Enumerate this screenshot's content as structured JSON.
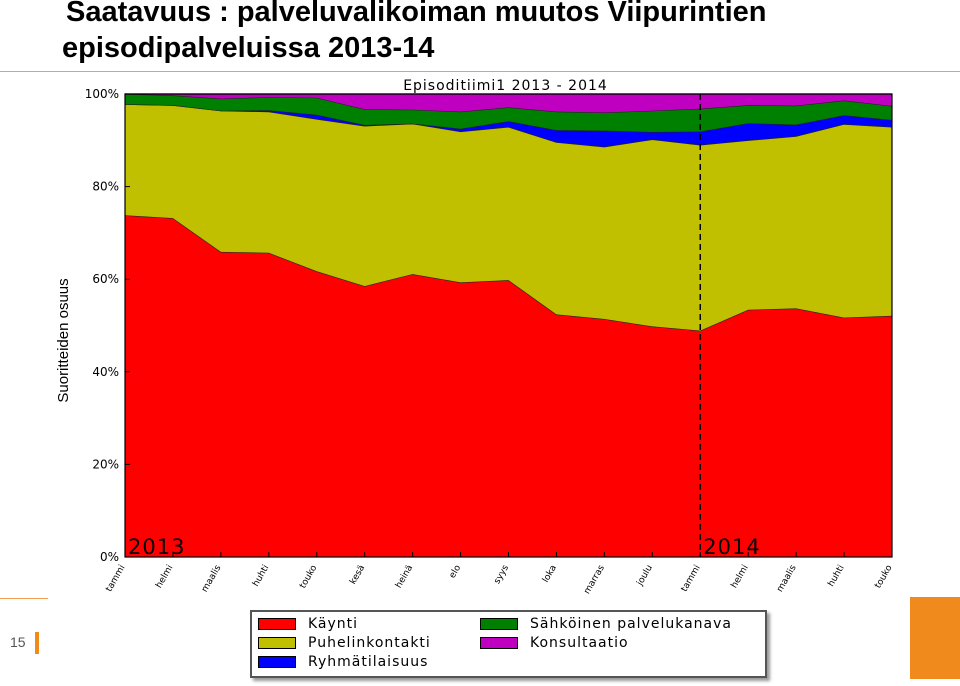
{
  "slide": {
    "title_line1": "Saatavuus : palveluvalikoiman muutos Viipurintien",
    "title_line2": "episodipalveluissa 2013-14",
    "page_number": "15",
    "accent_color": "#f08a1c"
  },
  "chart_data": {
    "type": "area",
    "stacked": true,
    "normalized": true,
    "title": "Episoditiimi1 2013 - 2014",
    "ylabel": "Suoritteiden osuus",
    "xlabel": "",
    "ylim": [
      0,
      100
    ],
    "y_ticks": [
      "0%",
      "20%",
      "40%",
      "60%",
      "80%",
      "100%"
    ],
    "x": [
      "tammi",
      "helmi",
      "maalis",
      "huhti",
      "touko",
      "kesä",
      "heinä",
      "elo",
      "syys",
      "loka",
      "marras",
      "joulu",
      "tammi",
      "helmi",
      "maalis",
      "huhti",
      "touko"
    ],
    "year_labels": [
      {
        "label": "2013",
        "start_index": 0
      },
      {
        "label": "2014",
        "start_index": 12
      }
    ],
    "year_divider_at_index": 12,
    "series": [
      {
        "name": "Käynti",
        "color": "#ff0000",
        "values": [
          73.8,
          73.2,
          65.9,
          65.7,
          61.7,
          58.5,
          61.1,
          59.3,
          59.8,
          52.4,
          51.4,
          49.8,
          48.9,
          53.4,
          53.7,
          51.7,
          52.1
        ]
      },
      {
        "name": "Puhelinkontakti",
        "color": "#c0c000",
        "values": [
          24.0,
          24.4,
          30.5,
          30.5,
          32.9,
          34.6,
          32.5,
          32.6,
          33.1,
          37.2,
          37.2,
          40.4,
          40.1,
          36.6,
          37.2,
          41.8,
          40.8
        ]
      },
      {
        "name": "Ryhmätilaisuus",
        "color": "#0000ff",
        "values": [
          0.0,
          0.0,
          0.0,
          0.3,
          0.9,
          0.2,
          0.0,
          0.6,
          1.2,
          2.6,
          3.5,
          1.6,
          2.9,
          3.7,
          2.5,
          1.9,
          1.5
        ]
      },
      {
        "name": "Sähköinen palvelukanava",
        "color": "#008000",
        "values": [
          2.2,
          2.1,
          2.6,
          2.8,
          3.7,
          3.4,
          3.0,
          3.7,
          3.0,
          4.0,
          3.9,
          4.6,
          4.9,
          3.9,
          4.1,
          3.2,
          3.0
        ]
      },
      {
        "name": "Konsultaatio",
        "color": "#c000c0",
        "values": [
          0.0,
          0.3,
          1.0,
          0.7,
          0.8,
          3.3,
          3.4,
          3.8,
          2.9,
          3.8,
          4.0,
          3.6,
          3.2,
          2.4,
          2.5,
          1.4,
          2.6
        ]
      }
    ]
  }
}
